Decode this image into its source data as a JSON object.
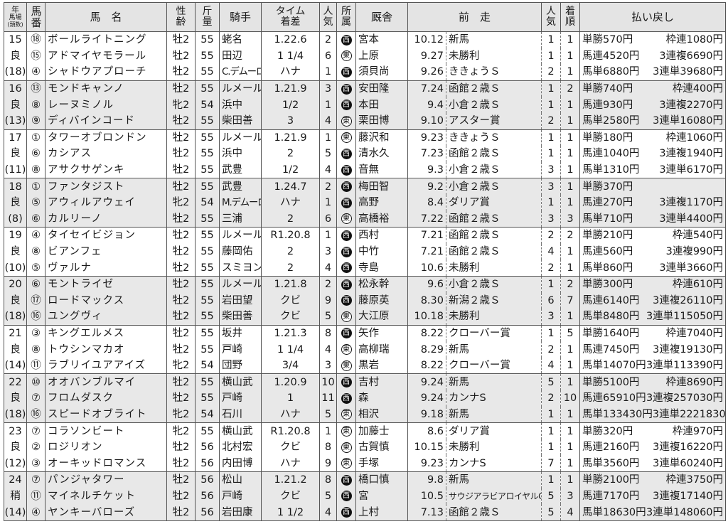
{
  "header": {
    "col_race": [
      "年",
      "馬場",
      "(頭数)"
    ],
    "col_post": "馬番",
    "col_name": "馬　名",
    "col_sex_age": "性齢",
    "col_weight": "斤量",
    "col_jockey": "騎手",
    "col_time": "タイム着差",
    "col_pop": "人気",
    "col_affil": "所属",
    "col_trainer": "厩舎",
    "col_prev": "前　走",
    "col_prev_pop": "人気",
    "col_prev_finish": "着順",
    "col_payout": "払い戻し"
  },
  "affiliation_colors": {
    "西": "#111111",
    "東": "#ffffff"
  },
  "races": [
    {
      "year": "15",
      "track": "良",
      "field": "(18)",
      "horses": [
        {
          "post": "⑱",
          "name": "ボールライトニング",
          "sex_age": "牡2",
          "weight": "55",
          "jockey": "蛯名",
          "time": "1.22.6",
          "pop": "2",
          "affil": "西",
          "trainer": "宮本",
          "prev_date": "10.12",
          "prev_race": "新馬",
          "prev_pop": "1",
          "prev_finish": "1"
        },
        {
          "post": "⑮",
          "name": "アドマイヤモラール",
          "sex_age": "牡2",
          "weight": "55",
          "jockey": "田辺",
          "time": "1 1/4",
          "pop": "6",
          "affil": "東",
          "trainer": "上原",
          "prev_date": "9.27",
          "prev_race": "未勝利",
          "prev_pop": "1",
          "prev_finish": "1"
        },
        {
          "post": "④",
          "name": "シャドウアプローチ",
          "sex_age": "牡2",
          "weight": "55",
          "jockey": "C.デムーロ",
          "time": "ハナ",
          "pop": "1",
          "affil": "西",
          "trainer": "須貝尚",
          "prev_date": "9.26",
          "prev_race": "ききょうＳ",
          "prev_pop": "2",
          "prev_finish": "1"
        }
      ],
      "payouts": [
        [
          "単勝570円",
          "枠連1080円"
        ],
        [
          "馬連4520円",
          "3連複6690円"
        ],
        [
          "馬単6880円",
          "3連単39680円"
        ]
      ]
    },
    {
      "year": "16",
      "track": "良",
      "field": "(13)",
      "horses": [
        {
          "post": "⑬",
          "name": "モンドキャンノ",
          "sex_age": "牡2",
          "weight": "55",
          "jockey": "ルメール",
          "time": "1.21.9",
          "pop": "3",
          "affil": "西",
          "trainer": "安田隆",
          "prev_date": "7.24",
          "prev_race": "函館２歳Ｓ",
          "prev_pop": "1",
          "prev_finish": "2"
        },
        {
          "post": "⑧",
          "name": "レーヌミノル",
          "sex_age": "牝2",
          "weight": "54",
          "jockey": "浜中",
          "time": "1/2",
          "pop": "1",
          "affil": "西",
          "trainer": "本田",
          "prev_date": "9.4",
          "prev_race": "小倉２歳Ｓ",
          "prev_pop": "1",
          "prev_finish": "1"
        },
        {
          "post": "⑨",
          "name": "ディバインコード",
          "sex_age": "牡2",
          "weight": "55",
          "jockey": "柴田善",
          "time": "3",
          "pop": "4",
          "affil": "東",
          "trainer": "栗田博",
          "prev_date": "9.10",
          "prev_race": "アスター賞",
          "prev_pop": "2",
          "prev_finish": "1"
        }
      ],
      "payouts": [
        [
          "単勝740円",
          "枠連400円"
        ],
        [
          "馬連930円",
          "3連複2270円"
        ],
        [
          "馬単2580円",
          "3連単16080円"
        ]
      ]
    },
    {
      "year": "17",
      "track": "良",
      "field": "(11)",
      "horses": [
        {
          "post": "①",
          "name": "タワーオブロンドン",
          "sex_age": "牡2",
          "weight": "55",
          "jockey": "ルメール",
          "time": "1.21.9",
          "pop": "1",
          "affil": "東",
          "trainer": "藤沢和",
          "prev_date": "9.23",
          "prev_race": "ききょうＳ",
          "prev_pop": "1",
          "prev_finish": "1"
        },
        {
          "post": "⑥",
          "name": "カシアス",
          "sex_age": "牡2",
          "weight": "55",
          "jockey": "浜中",
          "time": "2",
          "pop": "5",
          "affil": "西",
          "trainer": "清水久",
          "prev_date": "7.23",
          "prev_race": "函館２歳Ｓ",
          "prev_pop": "1",
          "prev_finish": "1"
        },
        {
          "post": "⑧",
          "name": "アサクサゲンキ",
          "sex_age": "牡2",
          "weight": "55",
          "jockey": "武豊",
          "time": "1/2",
          "pop": "4",
          "affil": "西",
          "trainer": "音無",
          "prev_date": "9.3",
          "prev_race": "小倉２歳Ｓ",
          "prev_pop": "3",
          "prev_finish": "1"
        }
      ],
      "payouts": [
        [
          "単勝180円",
          "枠連1060円"
        ],
        [
          "馬連1040円",
          "3連複1940円"
        ],
        [
          "馬単1310円",
          "3連単6170円"
        ]
      ]
    },
    {
      "year": "18",
      "track": "良",
      "field": "(8)",
      "horses": [
        {
          "post": "①",
          "name": "ファンタジスト",
          "sex_age": "牡2",
          "weight": "55",
          "jockey": "武豊",
          "time": "1.24.7",
          "pop": "2",
          "affil": "西",
          "trainer": "梅田智",
          "prev_date": "9.2",
          "prev_race": "小倉２歳Ｓ",
          "prev_pop": "3",
          "prev_finish": "1"
        },
        {
          "post": "⑤",
          "name": "アウィルアウェイ",
          "sex_age": "牝2",
          "weight": "54",
          "jockey": "M.デムーロ",
          "time": "ハナ",
          "pop": "1",
          "affil": "西",
          "trainer": "高野",
          "prev_date": "8.4",
          "prev_race": "ダリア賞",
          "prev_pop": "1",
          "prev_finish": "1"
        },
        {
          "post": "⑥",
          "name": "カルリーノ",
          "sex_age": "牡2",
          "weight": "55",
          "jockey": "三浦",
          "time": "2",
          "pop": "6",
          "affil": "東",
          "trainer": "高橋裕",
          "prev_date": "7.22",
          "prev_race": "函館２歳Ｓ",
          "prev_pop": "3",
          "prev_finish": "3"
        }
      ],
      "payouts": [
        [
          "単勝370円",
          ""
        ],
        [
          "馬連270円",
          "3連複1170円"
        ],
        [
          "馬単710円",
          "3連単4400円"
        ]
      ]
    },
    {
      "year": "19",
      "track": "良",
      "field": "(10)",
      "horses": [
        {
          "post": "④",
          "name": "タイセイビジョン",
          "sex_age": "牡2",
          "weight": "55",
          "jockey": "ルメール",
          "time": "R1.20.8",
          "pop": "1",
          "affil": "西",
          "trainer": "西村",
          "prev_date": "7.21",
          "prev_race": "函館２歳Ｓ",
          "prev_pop": "2",
          "prev_finish": "2"
        },
        {
          "post": "⑧",
          "name": "ビアンフェ",
          "sex_age": "牡2",
          "weight": "55",
          "jockey": "藤岡佑",
          "time": "2",
          "pop": "3",
          "affil": "西",
          "trainer": "中竹",
          "prev_date": "7.21",
          "prev_race": "函館２歳Ｓ",
          "prev_pop": "4",
          "prev_finish": "1"
        },
        {
          "post": "⑤",
          "name": "ヴァルナ",
          "sex_age": "牡2",
          "weight": "55",
          "jockey": "スミヨン",
          "time": "2",
          "pop": "4",
          "affil": "西",
          "trainer": "寺島",
          "prev_date": "10.6",
          "prev_race": "未勝利",
          "prev_pop": "2",
          "prev_finish": "1"
        }
      ],
      "payouts": [
        [
          "単勝210円",
          "枠連540円"
        ],
        [
          "馬連560円",
          "3連複990円"
        ],
        [
          "馬単860円",
          "3連単3660円"
        ]
      ]
    },
    {
      "year": "20",
      "track": "良",
      "field": "(18)",
      "horses": [
        {
          "post": "⑥",
          "name": "モントライゼ",
          "sex_age": "牡2",
          "weight": "55",
          "jockey": "ルメール",
          "time": "1.21.8",
          "pop": "2",
          "affil": "西",
          "trainer": "松永幹",
          "prev_date": "9.6",
          "prev_race": "小倉２歳Ｓ",
          "prev_pop": "1",
          "prev_finish": "2"
        },
        {
          "post": "⑰",
          "name": "ロードマックス",
          "sex_age": "牡2",
          "weight": "55",
          "jockey": "岩田望",
          "time": "クビ",
          "pop": "9",
          "affil": "西",
          "trainer": "藤原英",
          "prev_date": "8.30",
          "prev_race": "新潟２歳Ｓ",
          "prev_pop": "6",
          "prev_finish": "7"
        },
        {
          "post": "⑯",
          "name": "ユングヴィ",
          "sex_age": "牡2",
          "weight": "55",
          "jockey": "柴田善",
          "time": "クビ",
          "pop": "5",
          "affil": "東",
          "trainer": "大江原",
          "prev_date": "10.18",
          "prev_race": "未勝利",
          "prev_pop": "3",
          "prev_finish": "1"
        }
      ],
      "payouts": [
        [
          "単勝300円",
          "枠連610円"
        ],
        [
          "馬連6140円",
          "3連複26110円"
        ],
        [
          "馬単8480円",
          "3連単115050円"
        ]
      ]
    },
    {
      "year": "21",
      "track": "良",
      "field": "(14)",
      "horses": [
        {
          "post": "③",
          "name": "キングエルメス",
          "sex_age": "牡2",
          "weight": "55",
          "jockey": "坂井",
          "time": "1.21.3",
          "pop": "8",
          "affil": "西",
          "trainer": "矢作",
          "prev_date": "8.22",
          "prev_race": "クローバー賞",
          "prev_pop": "1",
          "prev_finish": "5"
        },
        {
          "post": "⑧",
          "name": "トウシンマカオ",
          "sex_age": "牡2",
          "weight": "55",
          "jockey": "戸崎",
          "time": "1 1/4",
          "pop": "4",
          "affil": "東",
          "trainer": "高柳瑞",
          "prev_date": "8.29",
          "prev_race": "新馬",
          "prev_pop": "2",
          "prev_finish": "1"
        },
        {
          "post": "⑪",
          "name": "ラブリイユアアイズ",
          "sex_age": "牝2",
          "weight": "54",
          "jockey": "団野",
          "time": "3/4",
          "pop": "3",
          "affil": "東",
          "trainer": "黒岩",
          "prev_date": "8.22",
          "prev_race": "クローバー賞",
          "prev_pop": "4",
          "prev_finish": "1"
        }
      ],
      "payouts": [
        [
          "単勝1640円",
          "枠連7040円"
        ],
        [
          "馬連7450円",
          "3連複19130円"
        ],
        [
          "馬単14070円",
          "3連単113390円"
        ]
      ]
    },
    {
      "year": "22",
      "track": "良",
      "field": "(18)",
      "horses": [
        {
          "post": "⑩",
          "name": "オオバンブルマイ",
          "sex_age": "牡2",
          "weight": "55",
          "jockey": "横山武",
          "time": "1.20.9",
          "pop": "10",
          "affil": "西",
          "trainer": "吉村",
          "prev_date": "9.24",
          "prev_race": "新馬",
          "prev_pop": "5",
          "prev_finish": "1"
        },
        {
          "post": "⑦",
          "name": "フロムダスク",
          "sex_age": "牡2",
          "weight": "55",
          "jockey": "戸崎",
          "time": "1",
          "pop": "11",
          "affil": "西",
          "trainer": "森",
          "prev_date": "9.24",
          "prev_race": "カンナS",
          "prev_pop": "2",
          "prev_finish": "10"
        },
        {
          "post": "⑯",
          "name": "スピードオブライト",
          "sex_age": "牝2",
          "weight": "54",
          "jockey": "石川",
          "time": "ハナ",
          "pop": "5",
          "affil": "東",
          "trainer": "相沢",
          "prev_date": "9.18",
          "prev_race": "新馬",
          "prev_pop": "1",
          "prev_finish": "1"
        }
      ],
      "payouts": [
        [
          "単勝5100円",
          "枠連8690円"
        ],
        [
          "馬連65910円",
          "3連複257030円"
        ],
        [
          "馬単133430円",
          "3連単2221830円"
        ]
      ]
    },
    {
      "year": "23",
      "track": "良",
      "field": "(12)",
      "horses": [
        {
          "post": "⑦",
          "name": "コラソンビート",
          "sex_age": "牝2",
          "weight": "55",
          "jockey": "横山武",
          "time": "R1.20.8",
          "pop": "1",
          "affil": "東",
          "trainer": "加藤士",
          "prev_date": "8.6",
          "prev_race": "ダリア賞",
          "prev_pop": "1",
          "prev_finish": "1"
        },
        {
          "post": "②",
          "name": "ロジリオン",
          "sex_age": "牡2",
          "weight": "56",
          "jockey": "北村宏",
          "time": "クビ",
          "pop": "8",
          "affil": "東",
          "trainer": "古賀慎",
          "prev_date": "10.15",
          "prev_race": "未勝利",
          "prev_pop": "1",
          "prev_finish": "1"
        },
        {
          "post": "③",
          "name": "オーキッドロマンス",
          "sex_age": "牡2",
          "weight": "56",
          "jockey": "内田博",
          "time": "ハナ",
          "pop": "9",
          "affil": "東",
          "trainer": "手塚",
          "prev_date": "9.23",
          "prev_race": "カンナS",
          "prev_pop": "7",
          "prev_finish": "1"
        }
      ],
      "payouts": [
        [
          "単勝320円",
          "枠連970円"
        ],
        [
          "馬連2160円",
          "3連複16220円"
        ],
        [
          "馬単3560円",
          "3連単60240円"
        ]
      ]
    },
    {
      "year": "24",
      "track": "稍",
      "field": "(14)",
      "horses": [
        {
          "post": "⑦",
          "name": "パンジャタワー",
          "sex_age": "牡2",
          "weight": "56",
          "jockey": "松山",
          "time": "1.21.2",
          "pop": "8",
          "affil": "西",
          "trainer": "橋口慎",
          "prev_date": "9.8",
          "prev_race": "新馬",
          "prev_pop": "1",
          "prev_finish": "1"
        },
        {
          "post": "⑪",
          "name": "マイネルチケット",
          "sex_age": "牡2",
          "weight": "56",
          "jockey": "戸崎",
          "time": "クビ",
          "pop": "5",
          "affil": "西",
          "trainer": "宮",
          "prev_date": "10.5",
          "prev_race": "サウジアラビアロイヤルC",
          "prev_pop": "5",
          "prev_finish": "3"
        },
        {
          "post": "④",
          "name": "ヤンキーバローズ",
          "sex_age": "牡2",
          "weight": "56",
          "jockey": "岩田康",
          "time": "1 1/2",
          "pop": "4",
          "affil": "西",
          "trainer": "上村",
          "prev_date": "7.13",
          "prev_race": "函館２歳Ｓ",
          "prev_pop": "5",
          "prev_finish": "4"
        }
      ],
      "payouts": [
        [
          "単勝2100円",
          "枠連3750円"
        ],
        [
          "馬連7170円",
          "3連複17140円"
        ],
        [
          "馬単18630円",
          "3連単148060円"
        ]
      ]
    }
  ]
}
